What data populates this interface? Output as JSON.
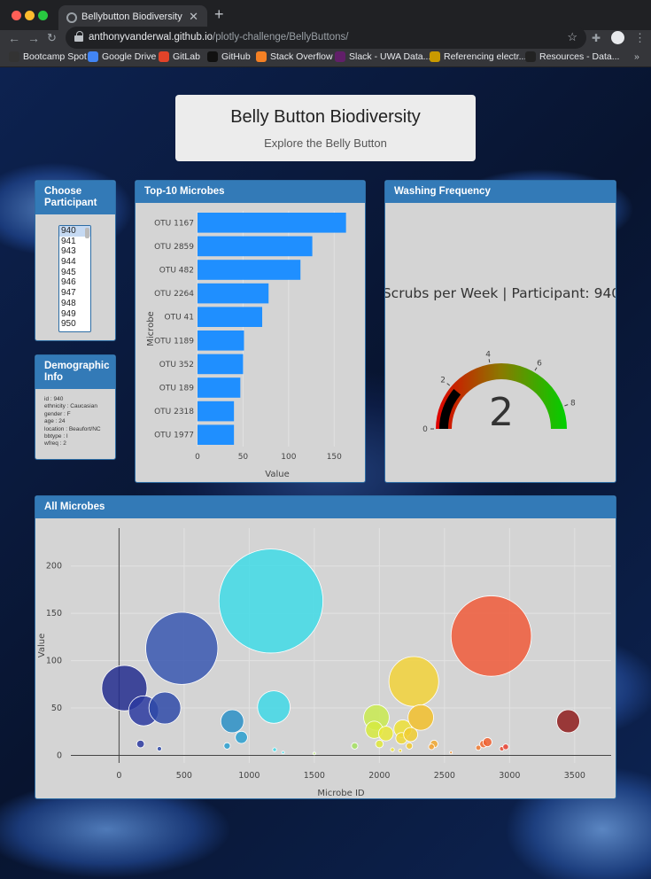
{
  "browser": {
    "tab_title": "Bellybutton Biodiversity",
    "url_host": "anthonyvanderwal.github.io",
    "url_path": "/plotly-challenge/BellyButtons/",
    "bookmarks": [
      {
        "label": "Bootcamp Spot",
        "icon": "bootcamp-icon",
        "color": "#333333"
      },
      {
        "label": "Google Drive",
        "icon": "google-icon",
        "color": "#4285f4"
      },
      {
        "label": "GitLab",
        "icon": "gitlab-icon",
        "color": "#e24329"
      },
      {
        "label": "GitHub",
        "icon": "github-icon",
        "color": "#111111"
      },
      {
        "label": "Stack Overflow",
        "icon": "stackoverflow-icon",
        "color": "#f48024"
      },
      {
        "label": "Slack - UWA Data...",
        "icon": "slack-icon",
        "color": "#611f69"
      },
      {
        "label": "Referencing electr...",
        "icon": "qa-icon",
        "color": "#c99a00"
      },
      {
        "label": "Resources - Data...",
        "icon": "folder-icon",
        "color": "#222222"
      }
    ]
  },
  "header": {
    "title": "Belly Button Biodiversity",
    "subtitle": "Explore the Belly Button"
  },
  "selector": {
    "title": "Choose Participant",
    "options": [
      "940",
      "941",
      "943",
      "944",
      "945",
      "946",
      "947",
      "948",
      "949",
      "950"
    ],
    "selected": "940"
  },
  "demographics": {
    "title": "Demographic Info",
    "lines": [
      "id : 940",
      "ethnicity : Caucasian",
      "gender : F",
      "age : 24",
      "location : Beaufort/NC",
      "bbtype : I",
      "wfreq : 2"
    ]
  },
  "top10": {
    "title": "Top-10 Microbes"
  },
  "gauge": {
    "title": "Washing Frequency"
  },
  "bubble": {
    "title": "All Microbes"
  },
  "chart_data": [
    {
      "type": "bar",
      "orientation": "horizontal",
      "categories": [
        "OTU 1167",
        "OTU 2859",
        "OTU 482",
        "OTU 2264",
        "OTU 41",
        "OTU 1189",
        "OTU 352",
        "OTU 189",
        "OTU 2318",
        "OTU 1977"
      ],
      "values": [
        163,
        126,
        113,
        78,
        71,
        51,
        50,
        47,
        40,
        40
      ],
      "xlabel": "Value",
      "ylabel": "Microbe",
      "xticks": [
        0,
        50,
        100,
        150
      ],
      "xlim": [
        0,
        175
      ],
      "color": "#1f8fff"
    },
    {
      "type": "gauge",
      "title": "Scrubs per Week | Participant: 940",
      "value": 2,
      "range": [
        0,
        9
      ],
      "ticks": [
        0,
        2,
        4,
        6,
        8
      ],
      "colors": {
        "low": "#e00000",
        "mid": "#8a7a00",
        "high": "#00d000",
        "bar": "#000000"
      }
    },
    {
      "type": "scatter",
      "variant": "bubble",
      "xlabel": "Microbe ID",
      "ylabel": "Value",
      "xticks": [
        0,
        500,
        1000,
        1500,
        2000,
        2500,
        3000,
        3500
      ],
      "yticks": [
        0,
        50,
        100,
        150,
        200
      ],
      "xlim": [
        -370,
        3780
      ],
      "ylim": [
        -8,
        240
      ],
      "points": [
        {
          "x": 41,
          "y": 71,
          "v": 71,
          "c": "#232d8e"
        },
        {
          "x": 189,
          "y": 47,
          "v": 47,
          "c": "#2b3aa0"
        },
        {
          "x": 352,
          "y": 50,
          "v": 50,
          "c": "#2f4aa8"
        },
        {
          "x": 482,
          "y": 113,
          "v": 113,
          "c": "#3857b0"
        },
        {
          "x": 165,
          "y": 12,
          "v": 12,
          "c": "#2b3aa0"
        },
        {
          "x": 310,
          "y": 7,
          "v": 7,
          "c": "#2f4aa8"
        },
        {
          "x": 870,
          "y": 36,
          "v": 36,
          "c": "#2a8fc6"
        },
        {
          "x": 940,
          "y": 19,
          "v": 19,
          "c": "#2a9fcf"
        },
        {
          "x": 830,
          "y": 10,
          "v": 10,
          "c": "#2a9fcf"
        },
        {
          "x": 1167,
          "y": 163,
          "v": 163,
          "c": "#3fdbe6"
        },
        {
          "x": 1189,
          "y": 51,
          "v": 51,
          "c": "#3fd8e6"
        },
        {
          "x": 1195,
          "y": 6,
          "v": 6,
          "c": "#3fd8e6"
        },
        {
          "x": 1260,
          "y": 3,
          "v": 3,
          "c": "#3fd8e6"
        },
        {
          "x": 1500,
          "y": 2,
          "v": 2,
          "c": "#c6ec8a"
        },
        {
          "x": 1810,
          "y": 10,
          "v": 10,
          "c": "#a4e060"
        },
        {
          "x": 1977,
          "y": 40,
          "v": 40,
          "c": "#c9ea50"
        },
        {
          "x": 1960,
          "y": 27,
          "v": 27,
          "c": "#d6ea40"
        },
        {
          "x": 2000,
          "y": 12,
          "v": 12,
          "c": "#dfe83a"
        },
        {
          "x": 2050,
          "y": 23,
          "v": 23,
          "c": "#e8e838"
        },
        {
          "x": 2100,
          "y": 6,
          "v": 6,
          "c": "#ece33a"
        },
        {
          "x": 2180,
          "y": 28,
          "v": 28,
          "c": "#ede036"
        },
        {
          "x": 2170,
          "y": 18,
          "v": 18,
          "c": "#eed836"
        },
        {
          "x": 2160,
          "y": 5,
          "v": 5,
          "c": "#eed836"
        },
        {
          "x": 2264,
          "y": 78,
          "v": 78,
          "c": "#f2d23a"
        },
        {
          "x": 2240,
          "y": 22,
          "v": 22,
          "c": "#f0cc30"
        },
        {
          "x": 2230,
          "y": 10,
          "v": 10,
          "c": "#f0c830"
        },
        {
          "x": 2318,
          "y": 40,
          "v": 40,
          "c": "#f2c02c"
        },
        {
          "x": 2420,
          "y": 12,
          "v": 12,
          "c": "#f1a830"
        },
        {
          "x": 2400,
          "y": 9,
          "v": 9,
          "c": "#f1a030"
        },
        {
          "x": 2550,
          "y": 3,
          "v": 3,
          "c": "#f09030"
        },
        {
          "x": 2760,
          "y": 8,
          "v": 8,
          "c": "#f07a30"
        },
        {
          "x": 2800,
          "y": 12,
          "v": 12,
          "c": "#f06a30"
        },
        {
          "x": 2830,
          "y": 14,
          "v": 14,
          "c": "#f06030"
        },
        {
          "x": 2859,
          "y": 126,
          "v": 126,
          "c": "#f05a3a"
        },
        {
          "x": 2940,
          "y": 7,
          "v": 7,
          "c": "#e84a30"
        },
        {
          "x": 2970,
          "y": 9,
          "v": 9,
          "c": "#e84030"
        },
        {
          "x": 3450,
          "y": 36,
          "v": 36,
          "c": "#8e1c1c"
        }
      ]
    }
  ]
}
